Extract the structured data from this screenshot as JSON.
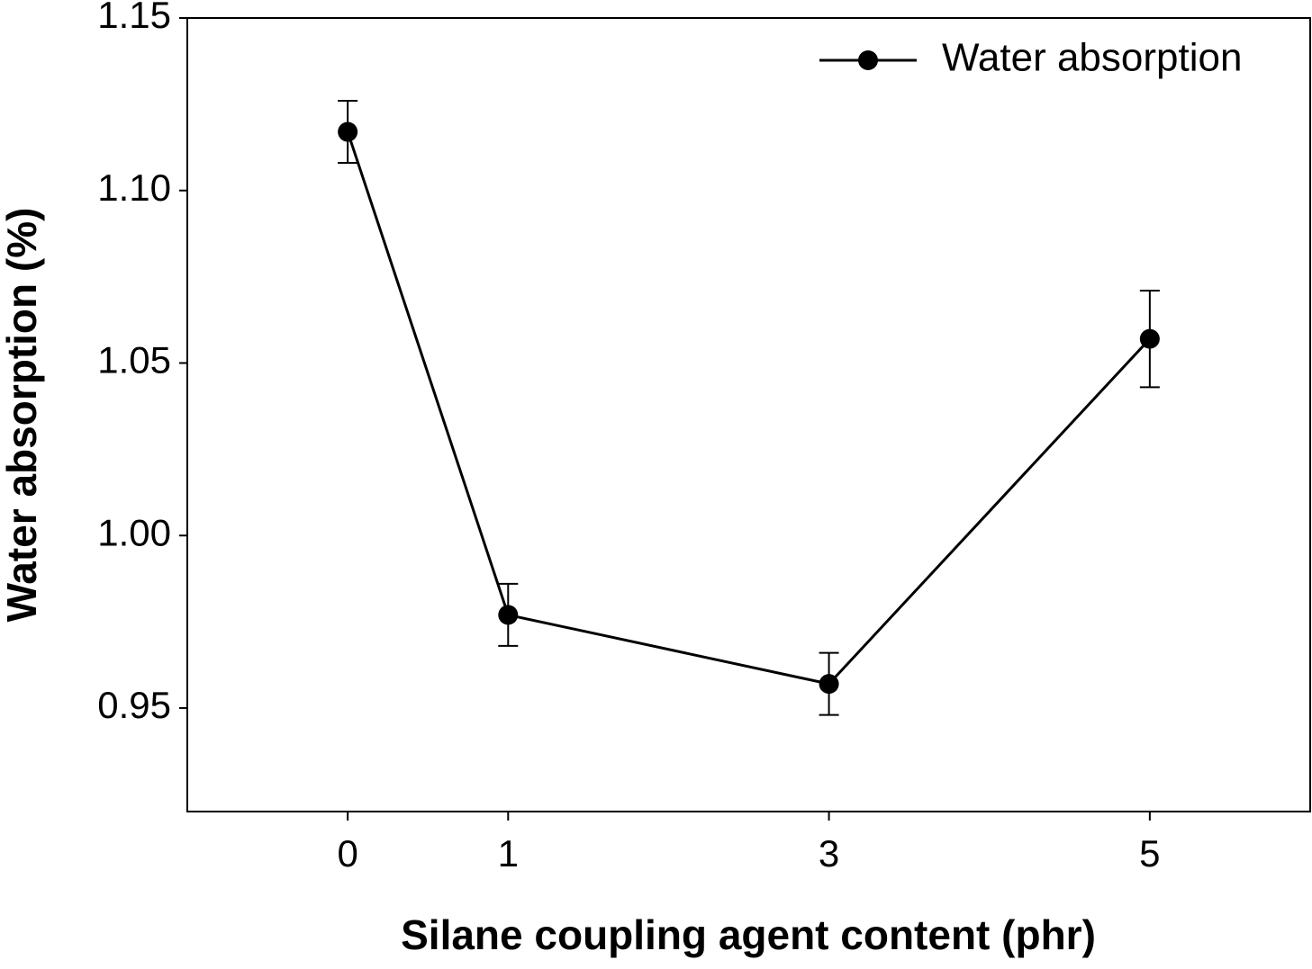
{
  "chart_data": {
    "type": "line",
    "xlabel": "Silane coupling agent content (phr)",
    "ylabel": "Water absorption (%)",
    "x": [
      0,
      1,
      3,
      5
    ],
    "series": [
      {
        "name": "Water absorption",
        "color": "#000000",
        "values": [
          1.117,
          0.977,
          0.957,
          1.057
        ],
        "errors": [
          0.009,
          0.009,
          0.009,
          0.014
        ]
      }
    ],
    "xlim": [
      -1,
      6
    ],
    "ylim": [
      0.92,
      1.15
    ],
    "xticks": [
      0,
      1,
      3,
      5
    ],
    "yticks": [
      0.95,
      {
        "value": 1,
        "label": "1.00"
      },
      1.05,
      {
        "value": 1.1,
        "label": "1.10"
      },
      1.15
    ],
    "legend": "upper right",
    "grid": false
  }
}
